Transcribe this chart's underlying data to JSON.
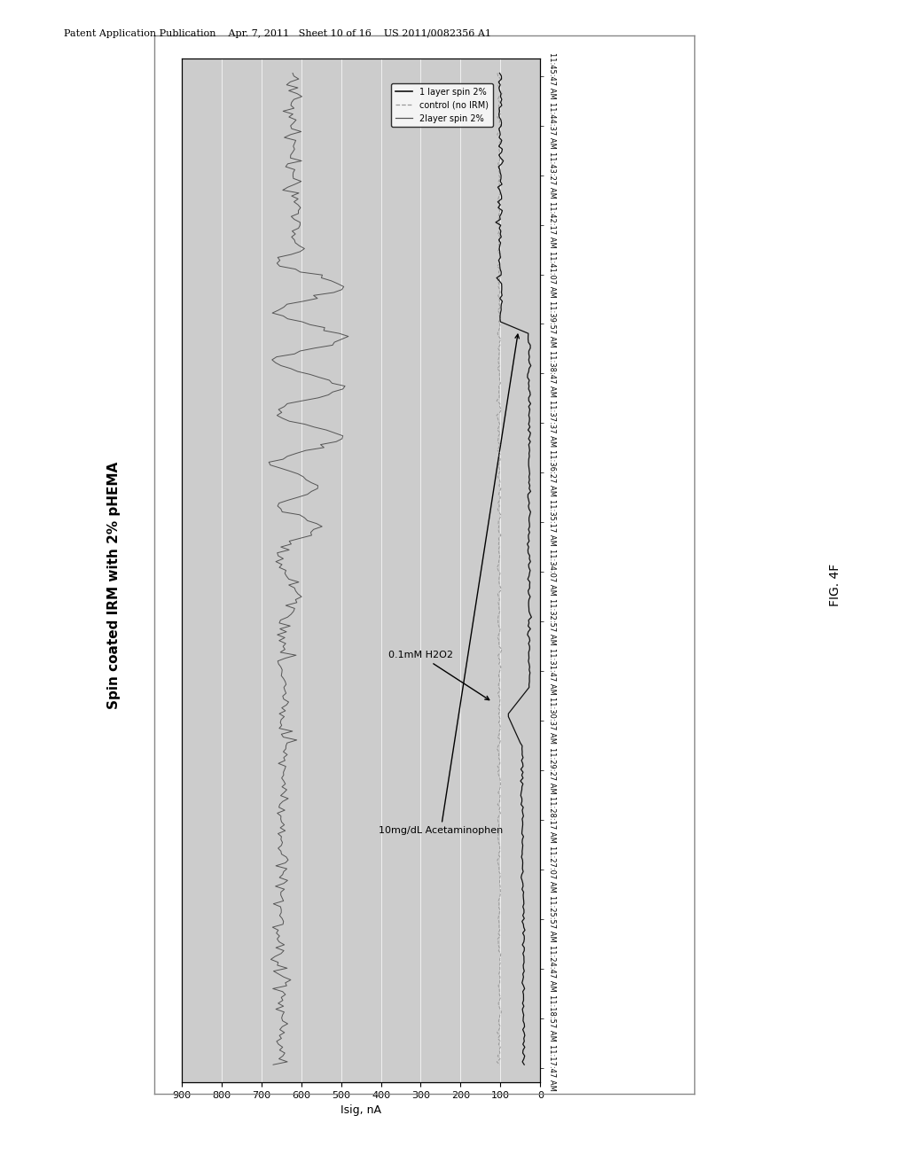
{
  "title": "Spin coated IRM with 2% pHEMA",
  "isig_label": "Isig, nA",
  "ylim": [
    0,
    900
  ],
  "yticks": [
    0,
    100,
    200,
    300,
    400,
    500,
    600,
    700,
    800,
    900
  ],
  "header_text": "Patent Application Publication    Apr. 7, 2011   Sheet 10 of 16    US 2011/0082356 A1",
  "fig_label": "FIG. 4F",
  "legend_entries": [
    "1 layer spin 2%",
    "control (no IRM)",
    "2layer spin 2%"
  ],
  "annotation1_text": "0.1mM H2O2",
  "annotation2_text": "10mg/dL Acetaminophen",
  "time_labels": [
    "11:17:47 AM",
    "11:18:57 AM",
    "11:24:47 AM",
    "11:25:57 AM",
    "11:27:07 AM",
    "11:28:17 AM",
    "11:29:27 AM",
    "11:30:37 AM",
    "11:31:47 AM",
    "11:32:57 AM",
    "11:34:07 AM",
    "11:35:17 AM",
    "11:36:27 AM",
    "11:37:37 AM",
    "11:38:47 AM",
    "11:39:57 AM",
    "11:41:07 AM",
    "11:42:17 AM",
    "11:43:27 AM",
    "11:44:37 AM",
    "11:45:47 AM"
  ],
  "bg_color": "#c8c8c8",
  "plot_bg_color": "#cccccc",
  "n_points": 340
}
